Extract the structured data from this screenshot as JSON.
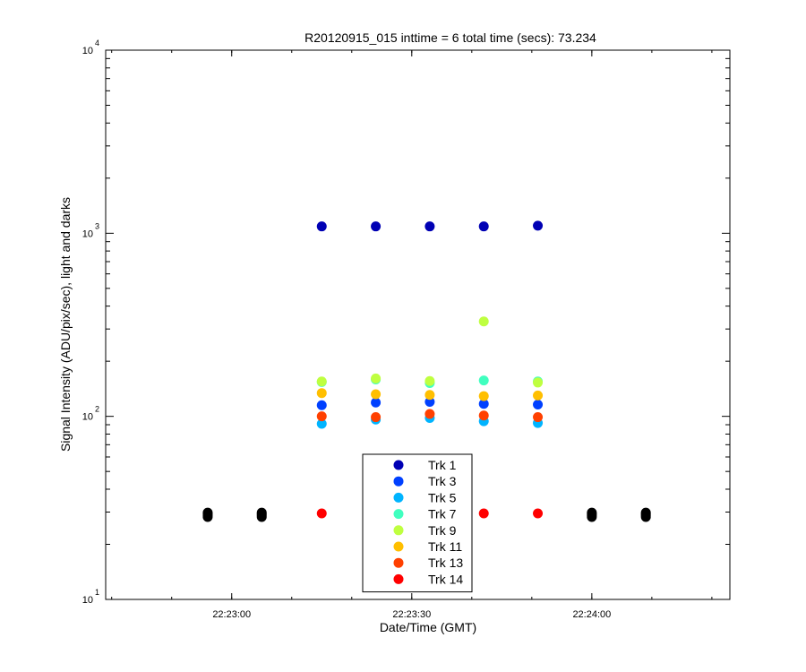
{
  "chart_data": {
    "type": "scatter",
    "title": "R20120915_015 inttime = 6 total time (secs): 73.234",
    "xlabel": "Date/Time (GMT)",
    "ylabel": "Signal Intensity (ADU/pix/sec), light and darks",
    "xlim": [
      "22:22:39",
      "22:24:23"
    ],
    "ylim": [
      10,
      10000
    ],
    "yscale": "log",
    "x_ticks": [
      "22:23:00",
      "22:23:30",
      "22:24:00"
    ],
    "y_ticks": [
      {
        "base": "10",
        "exp": "1",
        "value": 10
      },
      {
        "base": "10",
        "exp": "2",
        "value": 100
      },
      {
        "base": "10",
        "exp": "3",
        "value": 1000
      },
      {
        "base": "10",
        "exp": "4",
        "value": 10000
      }
    ],
    "legend_position": "bottom-center",
    "series": [
      {
        "name": "Trk 1",
        "color": "#0000b4",
        "x": [
          "22:23:15",
          "22:23:24",
          "22:23:33",
          "22:23:42",
          "22:23:51"
        ],
        "y": [
          1090,
          1090,
          1090,
          1090,
          1100
        ]
      },
      {
        "name": "Trk 3",
        "color": "#0040ff",
        "x": [
          "22:23:15",
          "22:23:24",
          "22:23:33",
          "22:23:42",
          "22:23:51"
        ],
        "y": [
          115,
          119,
          120,
          117,
          116
        ]
      },
      {
        "name": "Trk 5",
        "color": "#00b4ff",
        "x": [
          "22:23:15",
          "22:23:24",
          "22:23:33",
          "22:23:42",
          "22:23:51"
        ],
        "y": [
          91,
          96,
          98,
          94,
          92
        ]
      },
      {
        "name": "Trk 7",
        "color": "#40ffbf",
        "x": [
          "22:23:15",
          "22:23:24",
          "22:23:33",
          "22:23:42",
          "22:23:51"
        ],
        "y": [
          154,
          159,
          152,
          157,
          155
        ]
      },
      {
        "name": "Trk 9",
        "color": "#bfff40",
        "x": [
          "22:23:15",
          "22:23:24",
          "22:23:33",
          "22:23:42",
          "22:23:51"
        ],
        "y": [
          155,
          161,
          156,
          330,
          153
        ]
      },
      {
        "name": "Trk 11",
        "color": "#ffbf00",
        "x": [
          "22:23:15",
          "22:23:24",
          "22:23:33",
          "22:23:42",
          "22:23:51"
        ],
        "y": [
          134,
          132,
          131,
          129,
          130
        ]
      },
      {
        "name": "Trk 13",
        "color": "#ff4000",
        "x": [
          "22:23:15",
          "22:23:24",
          "22:23:33",
          "22:23:42",
          "22:23:51"
        ],
        "y": [
          100,
          99,
          103,
          101,
          99
        ]
      },
      {
        "name": "Trk 14",
        "color": "#ff0000",
        "x": [
          "22:23:15",
          "22:23:42",
          "22:23:51"
        ],
        "y": [
          29.5,
          29.5,
          29.5
        ]
      }
    ],
    "darks": {
      "color": "#000000",
      "x": [
        "22:22:56",
        "22:22:56",
        "22:22:56",
        "22:22:56",
        "22:23:05",
        "22:23:05",
        "22:23:05",
        "22:23:05",
        "22:24:00",
        "22:24:00",
        "22:24:00",
        "22:24:00",
        "22:24:09",
        "22:24:09",
        "22:24:09",
        "22:24:09"
      ],
      "y": [
        28.2,
        28.8,
        29.3,
        29.8,
        28.2,
        28.8,
        29.3,
        29.8,
        28.2,
        28.8,
        29.3,
        29.8,
        28.2,
        28.8,
        29.3,
        29.8
      ]
    }
  }
}
